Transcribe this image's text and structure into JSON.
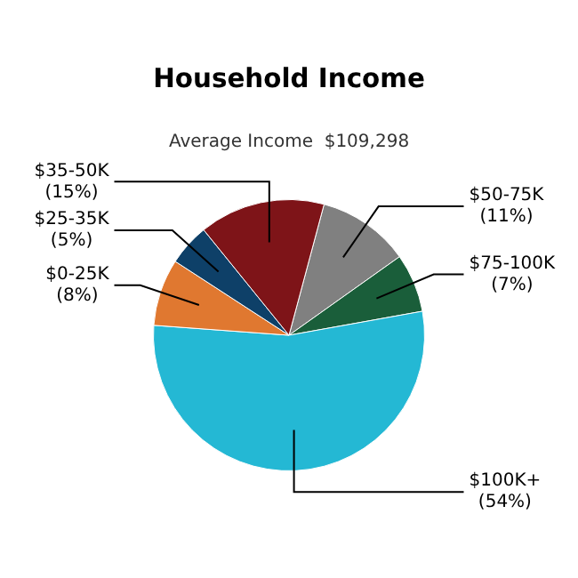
{
  "chart_data": {
    "type": "pie",
    "title": "Household Income",
    "subtitle": "Average Income  $109,298",
    "categories": [
      "$50-75K",
      "$75-100K",
      "$100K+",
      "$0-25K",
      "$25-35K",
      "$35-50K"
    ],
    "values": [
      11,
      7,
      54,
      8,
      5,
      15
    ],
    "value_labels": [
      "(11%)",
      "(7%)",
      "(54%)",
      "(8%)",
      "(5%)",
      "(15%)"
    ],
    "colors": [
      "#808080",
      "#1a5e3a",
      "#24b8d4",
      "#e07830",
      "#0e4068",
      "#7e1418"
    ],
    "legend": false
  }
}
